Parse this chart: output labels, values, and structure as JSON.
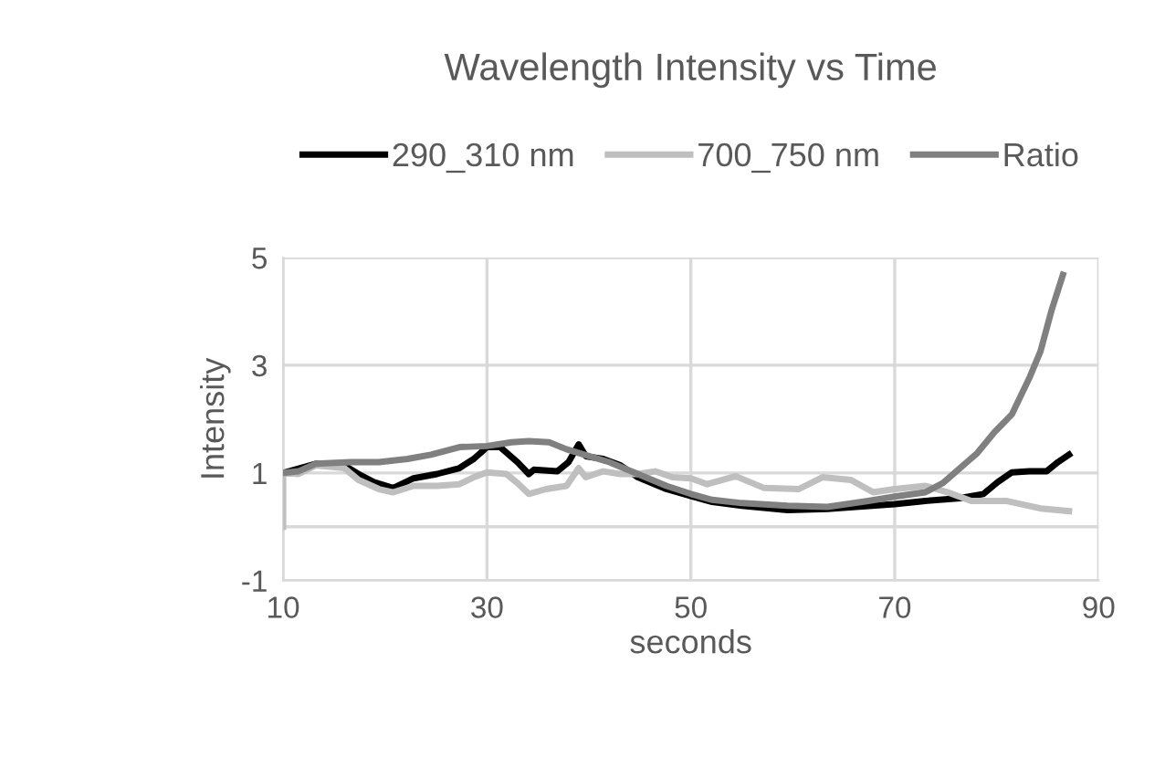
{
  "chart_data": {
    "type": "line",
    "title": "Wavelength Intensity vs Time",
    "xlabel": "seconds",
    "ylabel": "Intensity",
    "xlim": [
      10,
      90
    ],
    "xticks": [
      10,
      30,
      50,
      70,
      90
    ],
    "ylim": [
      -1,
      5
    ],
    "yticks": [
      -1,
      1,
      3,
      5
    ],
    "grid": true,
    "legend": "top",
    "marker": "none",
    "line_style": "solid",
    "ref_lines": [
      {
        "axis": "y",
        "value": 0,
        "label": null,
        "color": "#d9d9d9"
      }
    ],
    "series": [
      {
        "name": "290_310 nm",
        "color": "#000000",
        "x": [
          10,
          13.2,
          16.0,
          17.4,
          18.9,
          20.8,
          22.8,
          25.1,
          27.3,
          28.7,
          30,
          31.3,
          33.0,
          34.1,
          34.6,
          36.9,
          38.0,
          39.0,
          39.7,
          41.4,
          43.1,
          44.8,
          47.6,
          50,
          52.1,
          55.0,
          59.5,
          63.4,
          66.2,
          70,
          73.0,
          76.4,
          78.7,
          80.1,
          81.5,
          83.2,
          84.9,
          86.0,
          87.1
        ],
        "values": [
          1.0,
          1.17,
          1.14,
          0.98,
          0.83,
          0.72,
          0.9,
          0.98,
          1.09,
          1.26,
          1.48,
          1.48,
          1.2,
          0.98,
          1.06,
          1.03,
          1.2,
          1.53,
          1.31,
          1.26,
          1.14,
          0.92,
          0.7,
          0.57,
          0.46,
          0.39,
          0.31,
          0.33,
          0.37,
          0.42,
          0.48,
          0.53,
          0.61,
          0.83,
          1.01,
          1.03,
          1.03,
          1.2,
          1.34
        ]
      },
      {
        "name": "700_750 nm",
        "color": "#bfbfbf",
        "x": [
          10,
          10,
          11.5,
          13.2,
          16.0,
          17.4,
          19.4,
          20.8,
          22.8,
          25.1,
          27.3,
          28.7,
          30,
          31.9,
          33.0,
          34.1,
          35.8,
          37.8,
          39.0,
          39.7,
          41.4,
          43.1,
          44.8,
          46.5,
          48.2,
          50,
          51.6,
          54.4,
          57.2,
          60.6,
          62.9,
          65.7,
          67.9,
          70,
          73,
          75.2,
          77.5,
          80.9,
          84.3,
          87.1
        ],
        "values": [
          0,
          1.0,
          0.98,
          1.14,
          1.09,
          0.87,
          0.7,
          0.64,
          0.76,
          0.76,
          0.79,
          0.92,
          1.01,
          0.98,
          0.81,
          0.61,
          0.7,
          0.76,
          1.09,
          0.92,
          1.03,
          0.98,
          0.98,
          1.03,
          0.92,
          0.9,
          0.79,
          0.94,
          0.72,
          0.7,
          0.92,
          0.87,
          0.64,
          0.7,
          0.76,
          0.64,
          0.48,
          0.48,
          0.34,
          0.29
        ]
      },
      {
        "name": "Ratio",
        "color": "#808080",
        "x": [
          10,
          11.5,
          13.2,
          16.6,
          19.4,
          22.2,
          24.5,
          27.3,
          30,
          32.4,
          34.1,
          36.1,
          37.8,
          39.7,
          42.0,
          44.8,
          47.6,
          50,
          52.1,
          55,
          59.5,
          63.4,
          67.4,
          70,
          73,
          74.7,
          76.4,
          78.1,
          79.8,
          81.5,
          83.2,
          84.3,
          85.4,
          86.5
        ],
        "values": [
          1.0,
          1.03,
          1.17,
          1.2,
          1.2,
          1.26,
          1.34,
          1.48,
          1.5,
          1.57,
          1.59,
          1.57,
          1.44,
          1.33,
          1.2,
          0.98,
          0.76,
          0.61,
          0.5,
          0.44,
          0.39,
          0.37,
          0.48,
          0.56,
          0.64,
          0.81,
          1.09,
          1.37,
          1.76,
          2.09,
          2.76,
          3.26,
          4.03,
          4.68
        ]
      }
    ]
  }
}
